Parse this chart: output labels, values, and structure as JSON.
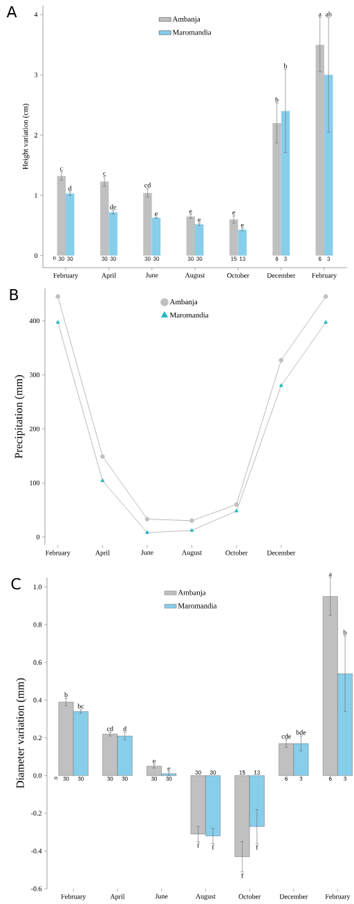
{
  "chart_data": [
    {
      "type": "bar",
      "title": "A",
      "ylabel": "Height variation (cm)",
      "categories": [
        "February",
        "April",
        "June",
        "August",
        "October",
        "December",
        "February"
      ],
      "ylim": [
        -0.2,
        4.15
      ],
      "yticks": [
        0,
        1,
        2,
        3,
        4
      ],
      "legend": "top",
      "series": [
        {
          "name": "Ambanja",
          "color": "#c0c0c0",
          "values": [
            1.32,
            1.23,
            1.04,
            0.65,
            0.6,
            2.2,
            3.5
          ],
          "errors": [
            0.07,
            0.08,
            0.07,
            0.03,
            0.06,
            0.33,
            0.45
          ]
        },
        {
          "name": "Maromandia",
          "color": "#87ceeb",
          "values": [
            1.03,
            0.72,
            0.63,
            0.52,
            0.43,
            2.4,
            3.0
          ],
          "errors": [
            0.03,
            0.03,
            0.01,
            0.02,
            0.02,
            0.69,
            0.95
          ]
        }
      ],
      "annotations": [
        "n",
        "30",
        "30",
        "30",
        "30",
        "30",
        "30",
        "30",
        "30",
        "15",
        "13",
        "6",
        "3",
        "6",
        "3",
        "c",
        "d",
        "c",
        "de",
        "cd",
        "e",
        "e",
        "e",
        "e",
        "e",
        "b",
        "b",
        "a",
        "ab"
      ]
    },
    {
      "type": "line",
      "title": "B",
      "ylabel": "Precipitation (mm)",
      "categories": [
        "February",
        "April",
        "June",
        "August",
        "October",
        "December",
        null
      ],
      "ylim": [
        -15,
        460
      ],
      "yticks": [
        0,
        100,
        200,
        300,
        400
      ],
      "legend": "top",
      "series": [
        {
          "name": "Ambanja",
          "color": "#c0c0c0",
          "marker": "circle",
          "values": [
            445,
            149,
            33,
            30,
            60,
            327,
            445
          ]
        },
        {
          "name": "Maromandia",
          "color": "#1cb8c0",
          "marker": "triangle",
          "values": [
            397,
            104,
            8,
            12,
            48,
            280,
            397
          ]
        }
      ]
    },
    {
      "type": "bar",
      "title": "C",
      "ylabel": "Diameter variation (mm)",
      "categories": [
        "February",
        "April",
        "June",
        "August",
        "October",
        "December",
        "February"
      ],
      "ylim": [
        -0.6,
        1.05
      ],
      "yticks": [
        {
          "value": -0.6,
          "label": "-0.6"
        },
        {
          "value": -0.4,
          "label": "-0.4"
        },
        {
          "value": -0.2,
          "label": "-0.2"
        },
        {
          "value": 0,
          "label": "0.0"
        },
        {
          "value": 0.2,
          "label": "0.2"
        },
        {
          "value": 0.4,
          "label": "0.4"
        },
        {
          "value": 0.6,
          "label": "0.6"
        },
        {
          "value": 0.8,
          "label": "0.8"
        },
        {
          "value": 1,
          "label": "1.0"
        }
      ],
      "legend": "top",
      "series": [
        {
          "name": "Ambanja",
          "color": "#c0c0c0",
          "values": [
            0.39,
            0.22,
            0.05,
            -0.31,
            -0.43,
            0.17,
            0.95
          ],
          "errors": [
            0.02,
            0.01,
            0.01,
            0.04,
            0.08,
            0.02,
            0.1
          ]
        },
        {
          "name": "Maromandia",
          "color": "#87ceeb",
          "values": [
            0.34,
            0.21,
            0.01,
            -0.32,
            -0.27,
            0.17,
            0.54
          ],
          "errors": [
            0.01,
            0.02,
            0.01,
            0.04,
            0.09,
            0.04,
            0.2
          ]
        }
      ],
      "annotations": [
        "n",
        "30",
        "30",
        "30",
        "30",
        "30",
        "30",
        "30",
        "30",
        "15",
        "13",
        "6",
        "3",
        "6",
        "3",
        "b",
        "bc",
        "cd",
        "d",
        "e",
        "e",
        "f",
        "f",
        "f",
        "f",
        "cde",
        "bde",
        "a",
        "b"
      ]
    }
  ]
}
